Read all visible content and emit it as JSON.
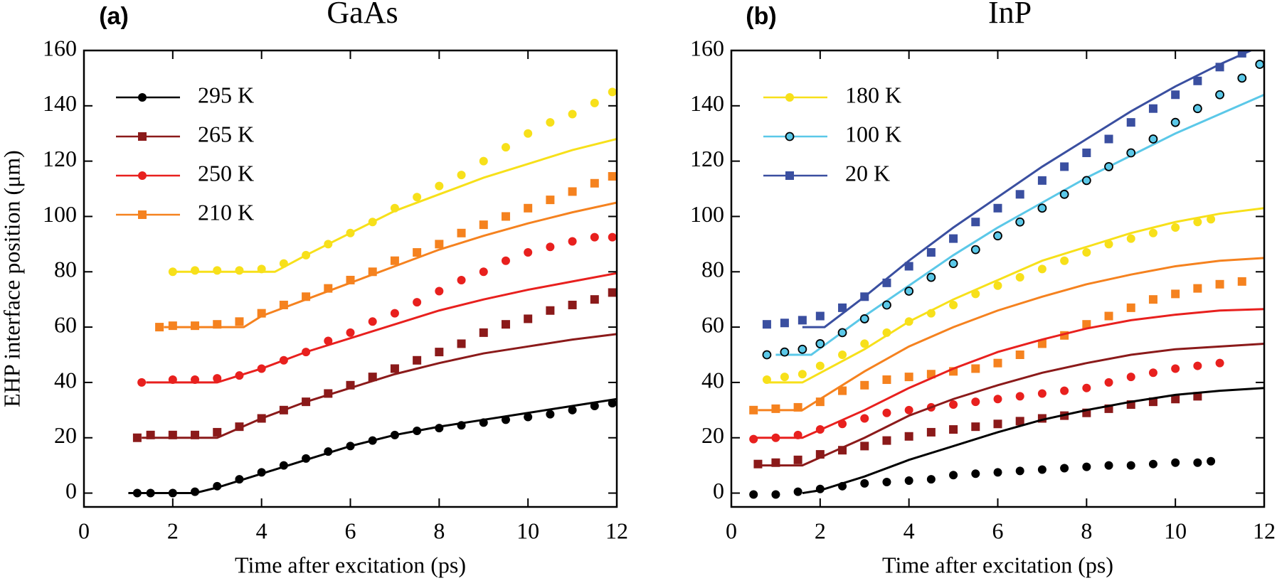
{
  "chart_data": [
    {
      "type": "line",
      "label": "(a)",
      "title": "GaAs",
      "x_label": "Time after excitation (ps)",
      "y_label": "EHP interface position (μm)",
      "xlim": [
        0,
        12
      ],
      "ylim": [
        -5,
        160
      ],
      "xticks": [
        0,
        2,
        4,
        6,
        8,
        10,
        12
      ],
      "yticks": [
        0,
        20,
        40,
        60,
        80,
        100,
        120,
        140,
        160
      ],
      "legend": "upper left",
      "series": [
        {
          "name": "295 K",
          "color": "#000000",
          "marker": "circle",
          "x": [
            1.2,
            1.5,
            2,
            2.5,
            3,
            3.5,
            4,
            4.5,
            5,
            5.5,
            6,
            6.5,
            7,
            7.5,
            8,
            8.5,
            9,
            9.5,
            10,
            10.5,
            11,
            11.5,
            11.9
          ],
          "values": [
            0,
            0,
            0,
            0.5,
            2.5,
            5,
            7.5,
            10,
            12.5,
            15,
            17,
            19,
            21,
            22.5,
            23.5,
            24.5,
            25.5,
            26.5,
            27.5,
            28.5,
            30,
            31.5,
            32.5
          ],
          "fit_x": [
            1,
            2.5,
            3,
            4,
            5,
            6,
            7,
            8,
            9,
            10,
            11,
            12
          ],
          "fit_values": [
            0,
            0,
            2,
            7,
            12,
            17,
            21,
            24,
            26.5,
            29,
            31.5,
            34
          ]
        },
        {
          "name": "265 K",
          "color": "#8b1a1a",
          "marker": "square",
          "x": [
            1.2,
            1.5,
            2,
            2.5,
            3,
            3.5,
            4,
            4.5,
            5,
            5.5,
            6,
            6.5,
            7,
            7.5,
            8,
            8.5,
            9,
            9.5,
            10,
            10.5,
            11,
            11.5,
            11.9
          ],
          "values": [
            20,
            21,
            21,
            21,
            22,
            24,
            27,
            30,
            33,
            36,
            39,
            42,
            45,
            48,
            51,
            54,
            58,
            61,
            63,
            66,
            68,
            70,
            72.5
          ],
          "fit_x": [
            1.3,
            3,
            4,
            5,
            6,
            7,
            8,
            9,
            10,
            11,
            12
          ],
          "fit_values": [
            20,
            20,
            27,
            33,
            38,
            43,
            47,
            50.5,
            53,
            55.5,
            57.5
          ]
        },
        {
          "name": "250 K",
          "color": "#e8201e",
          "marker": "circle",
          "x": [
            1.3,
            2,
            2.5,
            3,
            3.5,
            4,
            4.5,
            5,
            5.5,
            6,
            6.5,
            7,
            7.5,
            8,
            8.5,
            9,
            9.5,
            10,
            10.5,
            11,
            11.5,
            11.9
          ],
          "values": [
            40,
            41,
            41,
            41.5,
            42.5,
            45,
            48,
            51,
            55,
            58,
            62,
            65,
            69,
            73,
            77,
            80,
            84,
            87,
            89,
            91,
            92.5,
            92.5
          ],
          "fit_x": [
            1.4,
            3,
            4,
            5,
            6,
            7,
            8,
            9,
            10,
            11,
            12
          ],
          "fit_values": [
            40,
            40,
            45,
            51,
            56,
            61,
            66,
            70,
            73.5,
            76.5,
            79.5
          ]
        },
        {
          "name": "210 K",
          "color": "#f5821f",
          "marker": "square",
          "x": [
            1.7,
            2,
            2.5,
            3,
            3.5,
            4,
            4.5,
            5,
            5.5,
            6,
            6.5,
            7,
            7.5,
            8,
            8.5,
            9,
            9.5,
            10,
            10.5,
            11,
            11.5,
            11.9
          ],
          "values": [
            60,
            60.5,
            60.5,
            61,
            62,
            65,
            68,
            71,
            74,
            77,
            80,
            84,
            87,
            90,
            94,
            97,
            100,
            103,
            106,
            109,
            112,
            114.5
          ],
          "fit_x": [
            1.8,
            3.6,
            4,
            5,
            6,
            7,
            8,
            9,
            10,
            11,
            12
          ],
          "fit_values": [
            60,
            60,
            64,
            70,
            76,
            82,
            88,
            93,
            97.5,
            101.5,
            105
          ]
        },
        {
          "color": "#f7e01a",
          "marker": "circle",
          "x": [
            2,
            2.5,
            3,
            3.5,
            4,
            4.5,
            5,
            5.5,
            6,
            6.5,
            7,
            7.5,
            8,
            8.5,
            9,
            9.5,
            10,
            10.5,
            11,
            11.5,
            11.9
          ],
          "values": [
            80,
            80.5,
            80.5,
            80.5,
            81,
            83,
            86,
            90,
            94,
            98,
            103,
            107,
            111,
            115,
            120,
            125,
            130,
            134,
            137,
            141,
            145
          ],
          "fit_x": [
            2,
            4.3,
            5,
            6,
            7,
            8,
            9,
            10,
            11,
            12
          ],
          "fit_values": [
            80,
            80,
            86,
            94,
            102,
            108,
            114,
            119,
            124,
            128
          ]
        }
      ]
    },
    {
      "type": "line",
      "label": "(b)",
      "title": "InP",
      "x_label": "Time after excitation (ps)",
      "xlim": [
        0,
        12
      ],
      "ylim": [
        -5,
        160
      ],
      "xticks": [
        0,
        2,
        4,
        6,
        8,
        10,
        12
      ],
      "yticks": [
        0,
        20,
        40,
        60,
        80,
        100,
        120,
        140,
        160
      ],
      "legend": "upper left",
      "series": [
        {
          "name": "180 K",
          "color": "#f7e01a",
          "marker": "circle",
          "x": [
            0.8,
            1.2,
            1.6,
            2,
            2.5,
            3,
            3.5,
            4,
            4.5,
            5,
            5.5,
            6,
            6.5,
            7,
            7.5,
            8,
            8.5,
            9,
            9.5,
            10,
            10.5,
            10.8
          ],
          "values": [
            41,
            42,
            43,
            46,
            50,
            54,
            58,
            62,
            65,
            68,
            72,
            75,
            78,
            81,
            84,
            87,
            90,
            92,
            94,
            96,
            98,
            99
          ],
          "fit_x": [
            0.8,
            1.6,
            3,
            4,
            5,
            6,
            7,
            8,
            9,
            10,
            11,
            12
          ],
          "fit_values": [
            40,
            40,
            52,
            62,
            70,
            77,
            84,
            89,
            94,
            98,
            101,
            103
          ]
        },
        {
          "name": "100 K",
          "color": "#5bc8e8",
          "marker": "circle",
          "marker_edge": "#000000",
          "x": [
            0.8,
            1.2,
            1.6,
            2,
            2.5,
            3,
            3.5,
            4,
            4.5,
            5,
            5.5,
            6,
            6.5,
            7,
            7.5,
            8,
            8.5,
            9,
            9.5,
            10,
            10.5,
            11,
            11.5,
            11.9
          ],
          "values": [
            50,
            51,
            52,
            54,
            58,
            63,
            68,
            73,
            78,
            83,
            88,
            93,
            98,
            103,
            108,
            113,
            118,
            123,
            128,
            134,
            139,
            144,
            150,
            155
          ],
          "fit_x": [
            1,
            1.8,
            3,
            4,
            5,
            6,
            7,
            8,
            9,
            10,
            11,
            12
          ],
          "fit_values": [
            50,
            50,
            64,
            75,
            86,
            96,
            105,
            114,
            122,
            130,
            137,
            144
          ]
        },
        {
          "name": "20 K",
          "color": "#3a4fa0",
          "marker": "square",
          "x": [
            0.8,
            1.2,
            1.6,
            2,
            2.5,
            3,
            3.5,
            4,
            4.5,
            5,
            5.5,
            6,
            6.5,
            7,
            7.5,
            8,
            8.5,
            9,
            9.5,
            10,
            10.5,
            11,
            11.5
          ],
          "values": [
            61,
            61.5,
            62.5,
            64,
            67,
            71,
            76,
            82,
            87,
            92,
            98,
            103,
            108,
            113,
            118,
            123,
            128,
            134,
            139,
            144,
            149,
            154,
            159
          ],
          "fit_x": [
            1.6,
            2.1,
            3,
            4,
            5,
            6,
            7,
            8,
            9,
            10,
            11,
            11.7
          ],
          "fit_values": [
            60,
            60,
            71,
            84,
            96,
            107,
            118,
            128,
            138,
            147,
            155,
            160
          ]
        },
        {
          "color": "#f5821f",
          "marker": "square",
          "x": [
            0.5,
            1,
            1.5,
            2,
            2.5,
            3,
            3.5,
            4,
            4.5,
            5,
            5.5,
            6,
            6.5,
            7,
            7.5,
            8,
            8.5,
            9,
            9.5,
            10,
            10.5,
            11,
            11.5
          ],
          "values": [
            30,
            30.5,
            31,
            33,
            37,
            39,
            41,
            42,
            43,
            44,
            45,
            47,
            50,
            54,
            57,
            61,
            64,
            67,
            70,
            72,
            74,
            75.5,
            76.5
          ],
          "fit_x": [
            0.6,
            1.6,
            3,
            4,
            5,
            6,
            7,
            8,
            9,
            10,
            11,
            12
          ],
          "fit_values": [
            30,
            30,
            44,
            53,
            60,
            66,
            71,
            75.5,
            79,
            82,
            84,
            85
          ]
        },
        {
          "color": "#e8201e",
          "marker": "circle",
          "x": [
            0.5,
            1,
            1.5,
            2,
            2.5,
            3,
            3.5,
            4,
            4.5,
            5,
            5.5,
            6,
            6.5,
            7,
            7.5,
            8,
            8.5,
            9,
            9.5,
            10,
            10.5,
            11
          ],
          "values": [
            19.5,
            20,
            21,
            23,
            25,
            27,
            29,
            30,
            31,
            32,
            33,
            34,
            35,
            36,
            37,
            38,
            40,
            42,
            43.5,
            45,
            46,
            47
          ],
          "fit_x": [
            0.5,
            1.6,
            3,
            4,
            5,
            6,
            7,
            8,
            9,
            10,
            11,
            12
          ],
          "fit_values": [
            20,
            20,
            30,
            38,
            45,
            51,
            55.5,
            59.5,
            62.5,
            64.5,
            66,
            66.5
          ]
        },
        {
          "color": "#8b1a1a",
          "marker": "square",
          "x": [
            0.6,
            1,
            1.5,
            2,
            2.5,
            3,
            3.5,
            4,
            4.5,
            5,
            5.5,
            6,
            6.5,
            7,
            7.5,
            8,
            8.5,
            9,
            9.5,
            10,
            10.5
          ],
          "values": [
            10.5,
            11,
            12,
            14,
            15.5,
            17,
            19,
            20.5,
            22,
            23,
            24,
            25,
            26,
            27,
            28,
            29,
            30.5,
            32,
            33,
            34,
            35
          ],
          "fit_x": [
            0.6,
            1.6,
            3,
            4,
            5,
            6,
            7,
            8,
            9,
            10,
            11,
            12
          ],
          "fit_values": [
            10,
            10,
            20,
            28,
            34,
            39,
            43.5,
            47,
            50,
            52,
            53,
            54
          ]
        },
        {
          "color": "#000000",
          "marker": "circle",
          "x": [
            0.5,
            1,
            1.5,
            2,
            2.5,
            3,
            3.5,
            4,
            4.5,
            5,
            5.5,
            6,
            6.5,
            7,
            7.5,
            8,
            8.5,
            9,
            9.5,
            10,
            10.5,
            10.8
          ],
          "values": [
            -0.5,
            -0.5,
            0.5,
            1.5,
            2.5,
            3.5,
            4,
            4.5,
            5,
            6.5,
            7,
            7.5,
            8,
            8.5,
            9,
            9.5,
            10,
            10,
            10.5,
            11,
            11,
            11.5
          ],
          "fit_x": [
            1.6,
            2,
            3,
            4,
            5,
            6,
            7,
            8,
            9,
            10,
            11,
            12
          ],
          "fit_values": [
            0,
            1,
            6,
            12,
            17,
            22,
            26.5,
            30,
            33,
            35.5,
            37,
            38
          ]
        }
      ]
    }
  ]
}
